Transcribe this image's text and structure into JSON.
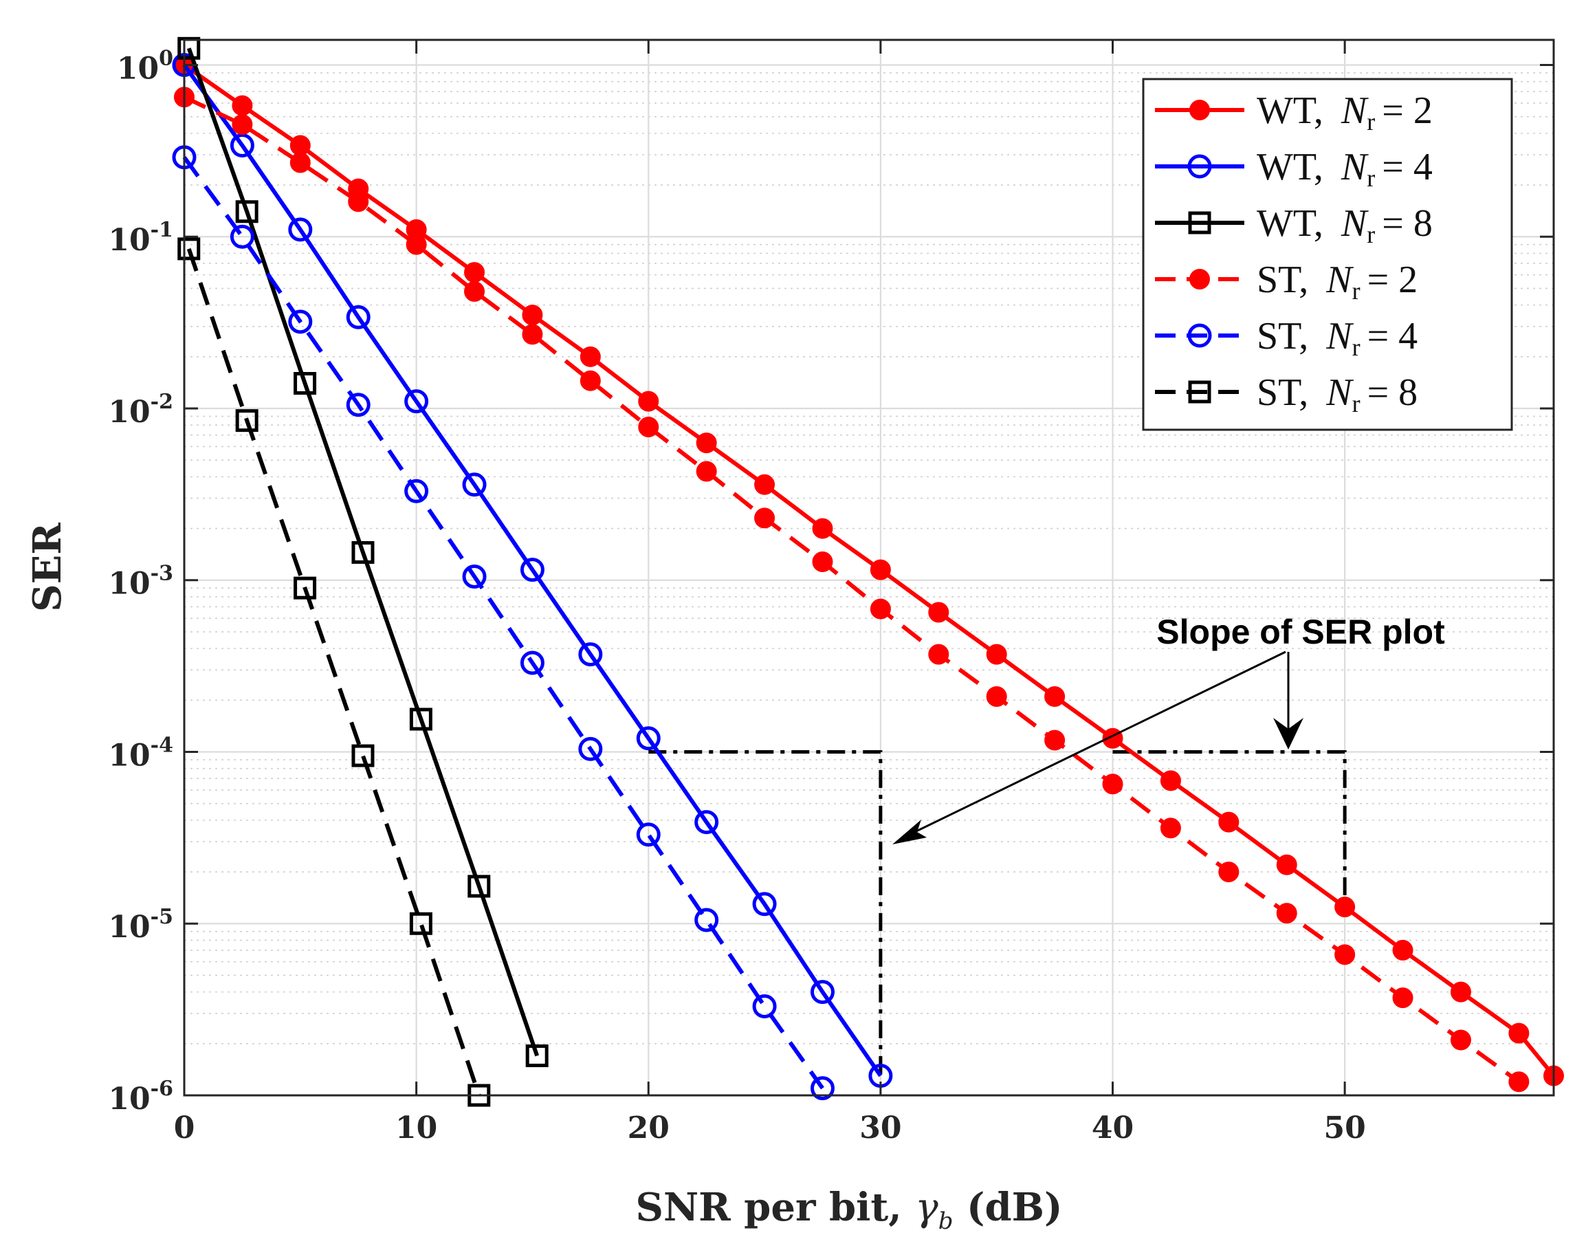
{
  "chart_data": {
    "type": "line",
    "title": "",
    "xlabel_main": "SNR per bit, ",
    "xlabel_symbol": "γ",
    "xlabel_sub": "b",
    "xlabel_unit": " (dB)",
    "ylabel": "SER",
    "xlim": [
      0,
      59
    ],
    "ylim": [
      1e-06,
      1.4
    ],
    "yscale": "log",
    "grid": "on",
    "legend_position": "top-right",
    "x_ticks": [
      "0",
      "10",
      "20",
      "30",
      "40",
      "50"
    ],
    "y_ticks": [
      {
        "base": "10",
        "exp": "0"
      },
      {
        "base": "10",
        "exp": "-1"
      },
      {
        "base": "10",
        "exp": "-2"
      },
      {
        "base": "10",
        "exp": "-3"
      },
      {
        "base": "10",
        "exp": "-4"
      },
      {
        "base": "10",
        "exp": "-5"
      },
      {
        "base": "10",
        "exp": "-6"
      }
    ],
    "series": [
      {
        "name": "WT",
        "nr": "2",
        "color": "#ff0000",
        "line": "solid",
        "marker": "filled-circle",
        "x": [
          0,
          2.5,
          5,
          7.5,
          10,
          12.5,
          15,
          17.5,
          20,
          22.5,
          25,
          27.5,
          30,
          32.5,
          35,
          37.5,
          40,
          42.5,
          45,
          47.5,
          50,
          52.5,
          55,
          57.5,
          59
        ],
        "y": [
          1.0,
          0.58,
          0.34,
          0.19,
          0.11,
          0.062,
          0.035,
          0.02,
          0.011,
          0.0063,
          0.0036,
          0.002,
          0.00115,
          0.00065,
          0.00037,
          0.00021,
          0.00012,
          6.8e-05,
          3.9e-05,
          2.2e-05,
          1.25e-05,
          7e-06,
          4e-06,
          2.3e-06,
          1.3e-06
        ]
      },
      {
        "name": "WT",
        "nr": "4",
        "color": "#0000ff",
        "line": "solid",
        "marker": "open-circle",
        "x": [
          0,
          2.5,
          5,
          7.5,
          10,
          12.5,
          15,
          17.5,
          20,
          22.5,
          25,
          27.5,
          30
        ],
        "y": [
          1.0,
          0.34,
          0.11,
          0.034,
          0.011,
          0.0036,
          0.00115,
          0.00037,
          0.00012,
          3.9e-05,
          1.3e-05,
          4e-06,
          1.3e-06
        ]
      },
      {
        "name": "WT",
        "nr": "8",
        "color": "#000000",
        "line": "solid",
        "marker": "open-square",
        "x": [
          0.2,
          2.7,
          5.2,
          7.7,
          10.2,
          12.7,
          15.2
        ],
        "y": [
          1.25,
          0.14,
          0.014,
          0.00145,
          0.000155,
          1.65e-05,
          1.7e-06
        ]
      },
      {
        "name": "ST",
        "nr": "2",
        "color": "#ff0000",
        "line": "dashed",
        "marker": "filled-circle",
        "x": [
          0,
          2.5,
          5,
          7.5,
          10,
          12.5,
          15,
          17.5,
          20,
          22.5,
          25,
          27.5,
          30,
          32.5,
          35,
          37.5,
          40,
          42.5,
          45,
          47.5,
          50,
          52.5,
          55,
          57.5
        ],
        "y": [
          0.65,
          0.45,
          0.27,
          0.16,
          0.09,
          0.048,
          0.027,
          0.0145,
          0.0078,
          0.0043,
          0.0023,
          0.00128,
          0.00068,
          0.00037,
          0.00021,
          0.000117,
          6.5e-05,
          3.6e-05,
          2e-05,
          1.15e-05,
          6.6e-06,
          3.7e-06,
          2.1e-06,
          1.2e-06
        ]
      },
      {
        "name": "ST",
        "nr": "4",
        "color": "#0000ff",
        "line": "dashed",
        "marker": "open-circle",
        "x": [
          0,
          2.5,
          5,
          7.5,
          10,
          12.5,
          15,
          17.5,
          20,
          22.5,
          25,
          27.5
        ],
        "y": [
          0.29,
          0.1,
          0.032,
          0.0105,
          0.0033,
          0.00105,
          0.00033,
          0.000104,
          3.3e-05,
          1.05e-05,
          3.3e-06,
          1.1e-06
        ]
      },
      {
        "name": "ST",
        "nr": "8",
        "color": "#000000",
        "line": "dashed",
        "marker": "open-square",
        "x": [
          0.2,
          2.7,
          5.2,
          7.7,
          10.2,
          12.7
        ],
        "y": [
          0.085,
          0.0085,
          0.0009,
          9.5e-05,
          1e-05,
          1e-06
        ]
      }
    ],
    "annotation": {
      "text": "Slope of SER plot",
      "slope_guides": [
        {
          "from": [
            20,
            0.0001
          ],
          "corner": [
            30,
            0.0001
          ],
          "to": [
            30,
            1.3e-06
          ]
        },
        {
          "from": [
            40,
            0.0001
          ],
          "corner": [
            50,
            0.0001
          ],
          "to": [
            50,
            1.25e-05
          ]
        }
      ]
    }
  },
  "legend": {
    "items": [
      {
        "label": "WT,",
        "symbol": "N",
        "sub": "r",
        "eq": "= 2"
      },
      {
        "label": "WT,",
        "symbol": "N",
        "sub": "r",
        "eq": "= 4"
      },
      {
        "label": "WT,",
        "symbol": "N",
        "sub": "r",
        "eq": "= 8"
      },
      {
        "label": "ST,",
        "symbol": "N",
        "sub": "r",
        "eq": "= 2"
      },
      {
        "label": "ST,",
        "symbol": "N",
        "sub": "r",
        "eq": "= 4"
      },
      {
        "label": "ST,",
        "symbol": "N",
        "sub": "r",
        "eq": "= 8"
      }
    ]
  }
}
